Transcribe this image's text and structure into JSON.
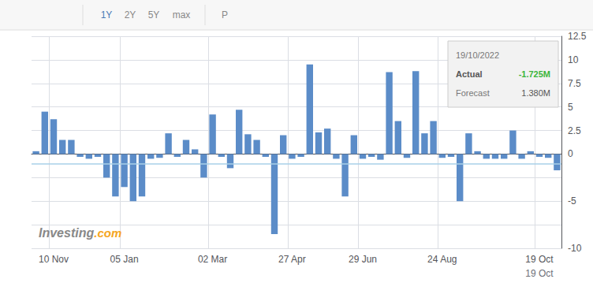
{
  "chart_data": {
    "type": "bar",
    "color": "#5b8cc8",
    "categories": [
      null,
      null,
      "10 Nov",
      null,
      null,
      null,
      null,
      null,
      null,
      null,
      "05 Jan",
      null,
      null,
      null,
      null,
      null,
      null,
      null,
      null,
      null,
      "02 Mar",
      null,
      null,
      null,
      null,
      null,
      null,
      null,
      null,
      "27 Apr",
      null,
      null,
      null,
      null,
      null,
      null,
      null,
      "29 Jun",
      null,
      null,
      null,
      null,
      null,
      null,
      null,
      null,
      "24 Aug",
      null,
      null,
      null,
      null,
      null,
      null,
      null,
      null,
      null,
      null,
      "19 Oct",
      null,
      null
    ],
    "values": [
      0.3,
      4.5,
      3.7,
      1.5,
      1.5,
      -0.3,
      -0.5,
      -0.3,
      -2.5,
      -4.5,
      -3.5,
      -5.0,
      -4.5,
      -0.5,
      -0.4,
      2.2,
      -0.3,
      1.5,
      0.5,
      -2.5,
      4.2,
      -0.3,
      -1.5,
      4.7,
      2.1,
      1.5,
      -0.3,
      -8.5,
      2.0,
      -0.5,
      -0.3,
      9.5,
      2.3,
      2.7,
      -0.5,
      -4.5,
      2.0,
      -0.5,
      -0.3,
      -0.6,
      8.7,
      3.5,
      -0.4,
      8.8,
      2.2,
      3.5,
      -0.4,
      -0.3,
      -5.0,
      2.2,
      0.3,
      -0.5,
      -0.5,
      -0.5,
      2.5,
      -0.5,
      0.3,
      -0.3,
      -0.4,
      -1.725
    ],
    "ylim": [
      -10,
      12.5
    ],
    "yticks": [
      -10,
      {
        "value": -7.5,
        "label": ""
      },
      -5,
      {
        "value": -2.5,
        "label": ""
      },
      0,
      2.5,
      5,
      7.5,
      10,
      12.5
    ],
    "grid": true,
    "reference_line": {
      "y": -1.0,
      "color": "#a8d0e8"
    },
    "annotations": [
      {
        "kind": "button",
        "text": "1Y",
        "color": "#4a7ab5"
      },
      {
        "kind": "button",
        "text": "2Y",
        "color": "#888888"
      },
      {
        "kind": "button",
        "text": "5Y",
        "color": "#888888"
      },
      {
        "kind": "button",
        "text": "max",
        "color": "#888888"
      },
      {
        "kind": "button",
        "text": "P",
        "color": "#888888"
      },
      {
        "kind": "tooltip_date",
        "text": "19/10/2022"
      },
      {
        "kind": "tooltip_row",
        "text": "Actual",
        "value": -1.725,
        "label": "-1.725M",
        "color": "#3ab53a"
      },
      {
        "kind": "tooltip_row",
        "text": "Forecast",
        "value": 1.38,
        "label": "1.380M"
      },
      {
        "kind": "watermark",
        "text": "Investing",
        "color": "#888888"
      },
      {
        "kind": "watermark",
        "text": ".com",
        "color": "#f5a623"
      },
      {
        "kind": "second_line",
        "text": "19 Oct",
        "at": "19 Oct"
      }
    ]
  }
}
